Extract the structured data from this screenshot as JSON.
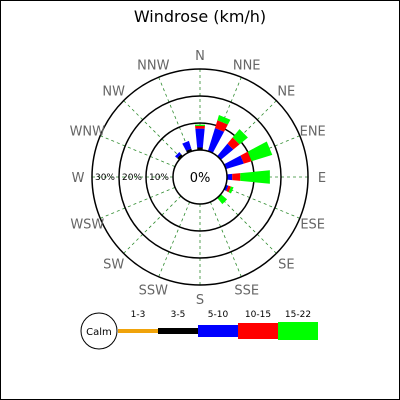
{
  "chart_data": {
    "type": "windrose",
    "title": "Windrose (km/h)",
    "directions": [
      "N",
      "NNE",
      "NE",
      "ENE",
      "E",
      "ESE",
      "SE",
      "SSE",
      "S",
      "SSW",
      "SW",
      "WSW",
      "W",
      "WNW",
      "NW",
      "NNW"
    ],
    "ring_labels": [
      "10%",
      "20%",
      "30%"
    ],
    "calm_label": "0%",
    "calm_legend_label": "Calm",
    "speed_bins": [
      {
        "name": "1-3",
        "color": "#f0a30a"
      },
      {
        "name": "3-5",
        "color": "#000000"
      },
      {
        "name": "5-10",
        "color": "#0000ff"
      },
      {
        "name": "10-15",
        "color": "#ff0000"
      },
      {
        "name": "15-22",
        "color": "#00ff00"
      }
    ],
    "series": [
      {
        "direction": "N",
        "values": [
          0,
          1,
          7,
          1,
          0.5
        ]
      },
      {
        "direction": "NNE",
        "values": [
          0,
          0,
          9,
          3,
          2
        ]
      },
      {
        "direction": "NE",
        "values": [
          0,
          0,
          6,
          3,
          4
        ]
      },
      {
        "direction": "ENE",
        "values": [
          0,
          0,
          7,
          3,
          8
        ]
      },
      {
        "direction": "E",
        "values": [
          0,
          0,
          2,
          3,
          11
        ]
      },
      {
        "direction": "ESE",
        "values": [
          0,
          0,
          1,
          1,
          1
        ]
      },
      {
        "direction": "SE",
        "values": [
          0,
          0,
          0,
          0,
          3
        ]
      },
      {
        "direction": "SSE",
        "values": [
          0,
          0,
          0,
          0,
          0
        ]
      },
      {
        "direction": "S",
        "values": [
          0,
          0,
          0,
          0,
          0
        ]
      },
      {
        "direction": "SSW",
        "values": [
          0,
          0,
          0,
          0,
          0
        ]
      },
      {
        "direction": "SW",
        "values": [
          0,
          0,
          0,
          0,
          0
        ]
      },
      {
        "direction": "WSW",
        "values": [
          0,
          0,
          0,
          0,
          0
        ]
      },
      {
        "direction": "W",
        "values": [
          0,
          0,
          0,
          0,
          0
        ]
      },
      {
        "direction": "WNW",
        "values": [
          0,
          0,
          0,
          0,
          0
        ]
      },
      {
        "direction": "NW",
        "values": [
          0,
          1,
          1,
          0,
          0
        ]
      },
      {
        "direction": "NNW",
        "values": [
          0,
          1,
          3,
          0,
          0
        ]
      }
    ],
    "r_max": 30,
    "grid": true
  }
}
